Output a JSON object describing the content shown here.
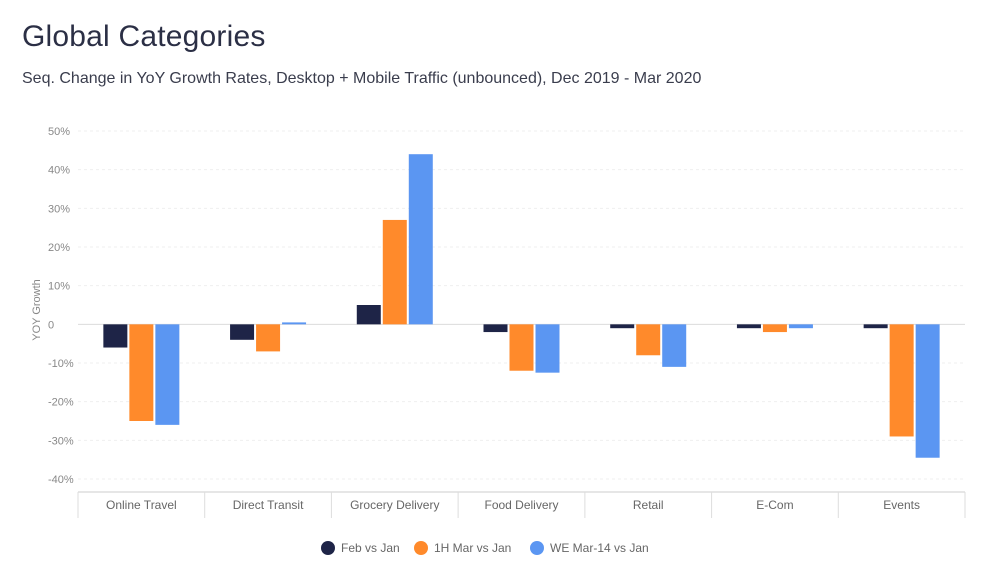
{
  "title": "Global Categories",
  "subtitle": "Seq. Change in YoY Growth Rates, Desktop + Mobile Traffic (unbounced), Dec 2019 - Mar 2020",
  "chart_data": {
    "type": "bar",
    "ylabel": "YOY Growth",
    "xlabel": "",
    "ylim": [
      -40,
      50
    ],
    "yticks": [
      50,
      40,
      30,
      20,
      10,
      0,
      -10,
      -20,
      -30,
      -40
    ],
    "ytick_labels": [
      "50%",
      "40%",
      "30%",
      "20%",
      "10%",
      "0",
      "-10%",
      "-20%",
      "-30%",
      "-40%"
    ],
    "grid": true,
    "legend_position": "bottom",
    "categories": [
      "Online Travel",
      "Direct Transit",
      "Grocery Delivery",
      "Food Delivery",
      "Retail",
      "E-Com",
      "Events"
    ],
    "series": [
      {
        "name": "Feb vs Jan",
        "color": "#1e2447",
        "values": [
          -6,
          -4,
          5,
          -2,
          -1,
          -1,
          -1
        ]
      },
      {
        "name": "1H Mar vs Jan",
        "color": "#ff8a2b",
        "values": [
          -25,
          -7,
          27,
          -12,
          -8,
          -2,
          -29
        ]
      },
      {
        "name": "WE Mar-14 vs Jan",
        "color": "#5b96f2",
        "values": [
          -26,
          0.5,
          44,
          -12.5,
          -11,
          -1,
          -34.5
        ]
      }
    ]
  }
}
